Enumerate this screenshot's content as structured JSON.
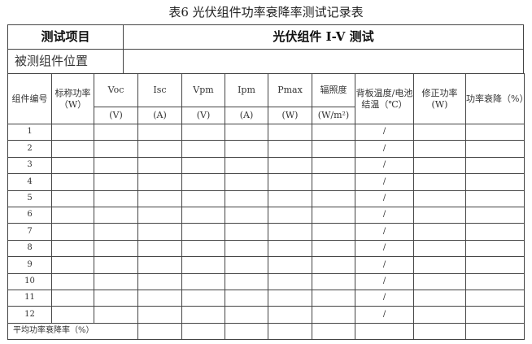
{
  "title": "表6  光伏组件功率衰降率测试记录表",
  "top": {
    "item_label": "测试项目",
    "item_value": "光伏组件 I-V 测试",
    "position_label": "被测组件位置",
    "position_value": ""
  },
  "headers": [
    "组件编号",
    "标称功率（W）",
    "Voc",
    "Isc",
    "Vpm",
    "Ipm",
    "Pmax",
    "辐照度",
    "背板温度/电池结温（℃）",
    "修正功率(W)",
    "功率衰降（%）"
  ],
  "units": [
    "(V)",
    "(A)",
    "(V)",
    "(A)",
    "(W)",
    "(W/m²)"
  ],
  "rows": [
    "1",
    "2",
    "3",
    "4",
    "5",
    "6",
    "7",
    "8",
    "9",
    "10",
    "11",
    "12"
  ],
  "temp_placeholder": "/",
  "average_label": "平均功率衰降率（%）"
}
